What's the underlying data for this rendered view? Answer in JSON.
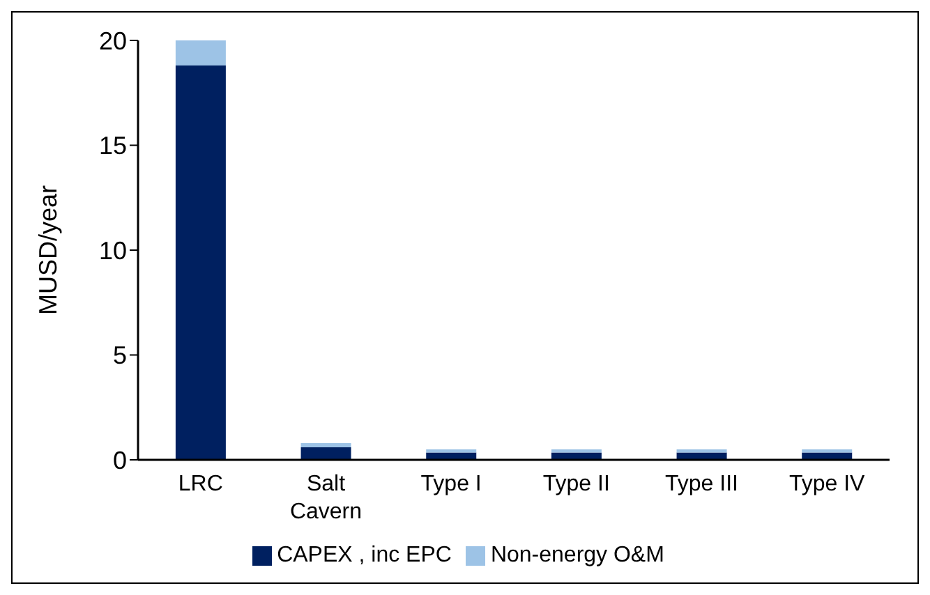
{
  "chart_data": {
    "type": "bar",
    "stacked": true,
    "ylabel": "MUSD/year",
    "categories": [
      "LRC",
      "Salt Cavern",
      "Type I",
      "Type II",
      "Type III",
      "Type IV"
    ],
    "series": [
      {
        "name": "CAPEX , inc EPC",
        "color": "#002060",
        "values": [
          18.8,
          0.6,
          0.35,
          0.35,
          0.35,
          0.35
        ]
      },
      {
        "name": "Non-energy O&M",
        "color": "#9dc3e6",
        "values": [
          1.2,
          0.2,
          0.15,
          0.15,
          0.15,
          0.15
        ]
      }
    ],
    "ylim": [
      0,
      20
    ],
    "yticks": [
      0,
      5,
      10,
      15,
      20
    ],
    "grid": false,
    "legend": "bottom"
  }
}
